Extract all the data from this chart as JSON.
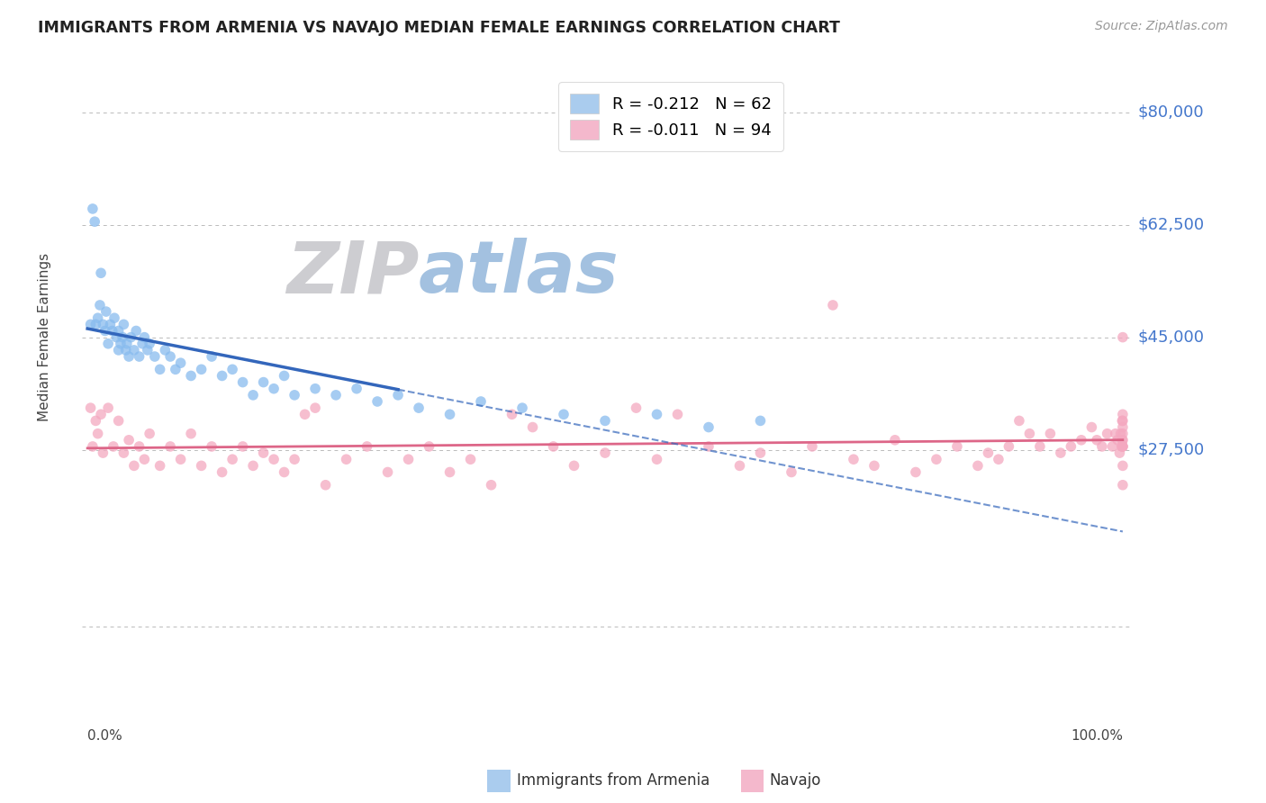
{
  "title": "IMMIGRANTS FROM ARMENIA VS NAVAJO MEDIAN FEMALE EARNINGS CORRELATION CHART",
  "source": "Source: ZipAtlas.com",
  "ylabel": "Median Female Earnings",
  "yticks": [
    0,
    27500,
    45000,
    62500,
    80000
  ],
  "ytick_labels": [
    "",
    "$27,500",
    "$45,000",
    "$62,500",
    "$80,000"
  ],
  "ymin": -15000,
  "ymax": 85000,
  "xmin": -0.5,
  "xmax": 101,
  "series1_name": "Immigrants from Armenia",
  "series2_name": "Navajo",
  "series1_color": "#88bbee",
  "series2_color": "#f4a8c0",
  "series1_trendline_color": "#3366bb",
  "series2_trendline_color": "#dd6688",
  "series1_legend_color": "#aaccee",
  "series2_legend_color": "#f4b8cc",
  "watermark_zip_color": "#c8c8cc",
  "watermark_atlas_color": "#99bbdd",
  "background_color": "#ffffff",
  "title_color": "#222222",
  "ytick_color": "#4477cc",
  "grid_color": "#bbbbbb",
  "series1_label": "R = -0.212   N = 62",
  "series2_label": "R = -0.011   N = 94",
  "series1_x": [
    0.3,
    0.5,
    0.7,
    0.8,
    1.0,
    1.2,
    1.3,
    1.5,
    1.7,
    1.8,
    2.0,
    2.2,
    2.4,
    2.6,
    2.8,
    3.0,
    3.0,
    3.2,
    3.4,
    3.5,
    3.7,
    3.8,
    4.0,
    4.2,
    4.5,
    4.7,
    5.0,
    5.3,
    5.5,
    5.8,
    6.0,
    6.5,
    7.0,
    7.5,
    8.0,
    8.5,
    9.0,
    10.0,
    11.0,
    12.0,
    13.0,
    14.0,
    15.0,
    16.0,
    17.0,
    18.0,
    19.0,
    20.0,
    22.0,
    24.0,
    26.0,
    28.0,
    30.0,
    32.0,
    35.0,
    38.0,
    42.0,
    46.0,
    50.0,
    55.0,
    60.0,
    65.0
  ],
  "series1_y": [
    47000,
    65000,
    63000,
    47000,
    48000,
    50000,
    55000,
    47000,
    46000,
    49000,
    44000,
    47000,
    46000,
    48000,
    45000,
    43000,
    46000,
    44000,
    45000,
    47000,
    43000,
    44000,
    42000,
    45000,
    43000,
    46000,
    42000,
    44000,
    45000,
    43000,
    44000,
    42000,
    40000,
    43000,
    42000,
    40000,
    41000,
    39000,
    40000,
    42000,
    39000,
    40000,
    38000,
    36000,
    38000,
    37000,
    39000,
    36000,
    37000,
    36000,
    37000,
    35000,
    36000,
    34000,
    33000,
    35000,
    34000,
    33000,
    32000,
    33000,
    31000,
    32000
  ],
  "series2_x": [
    0.3,
    0.5,
    0.8,
    1.0,
    1.3,
    1.5,
    2.0,
    2.5,
    3.0,
    3.5,
    4.0,
    4.5,
    5.0,
    5.5,
    6.0,
    7.0,
    8.0,
    9.0,
    10.0,
    11.0,
    12.0,
    13.0,
    14.0,
    15.0,
    16.0,
    17.0,
    18.0,
    19.0,
    20.0,
    21.0,
    22.0,
    23.0,
    25.0,
    27.0,
    29.0,
    31.0,
    33.0,
    35.0,
    37.0,
    39.0,
    41.0,
    43.0,
    45.0,
    47.0,
    50.0,
    53.0,
    55.0,
    57.0,
    60.0,
    63.0,
    65.0,
    68.0,
    70.0,
    72.0,
    74.0,
    76.0,
    78.0,
    80.0,
    82.0,
    84.0,
    86.0,
    87.0,
    88.0,
    89.0,
    90.0,
    91.0,
    92.0,
    93.0,
    94.0,
    95.0,
    96.0,
    97.0,
    97.5,
    98.0,
    98.5,
    99.0,
    99.3,
    99.5,
    99.7,
    99.8,
    99.9,
    99.95,
    99.97,
    99.99,
    100.0,
    100.0,
    100.0,
    100.0,
    100.0,
    100.0,
    100.0,
    100.0,
    100.0,
    100.0
  ],
  "series2_y": [
    34000,
    28000,
    32000,
    30000,
    33000,
    27000,
    34000,
    28000,
    32000,
    27000,
    29000,
    25000,
    28000,
    26000,
    30000,
    25000,
    28000,
    26000,
    30000,
    25000,
    28000,
    24000,
    26000,
    28000,
    25000,
    27000,
    26000,
    24000,
    26000,
    33000,
    34000,
    22000,
    26000,
    28000,
    24000,
    26000,
    28000,
    24000,
    26000,
    22000,
    33000,
    31000,
    28000,
    25000,
    27000,
    34000,
    26000,
    33000,
    28000,
    25000,
    27000,
    24000,
    28000,
    50000,
    26000,
    25000,
    29000,
    24000,
    26000,
    28000,
    25000,
    27000,
    26000,
    28000,
    32000,
    30000,
    28000,
    30000,
    27000,
    28000,
    29000,
    31000,
    29000,
    28000,
    30000,
    28000,
    30000,
    29000,
    27000,
    30000,
    28000,
    32000,
    29000,
    28000,
    33000,
    45000,
    28000,
    30000,
    32000,
    29000,
    31000,
    22000,
    25000,
    28000
  ]
}
